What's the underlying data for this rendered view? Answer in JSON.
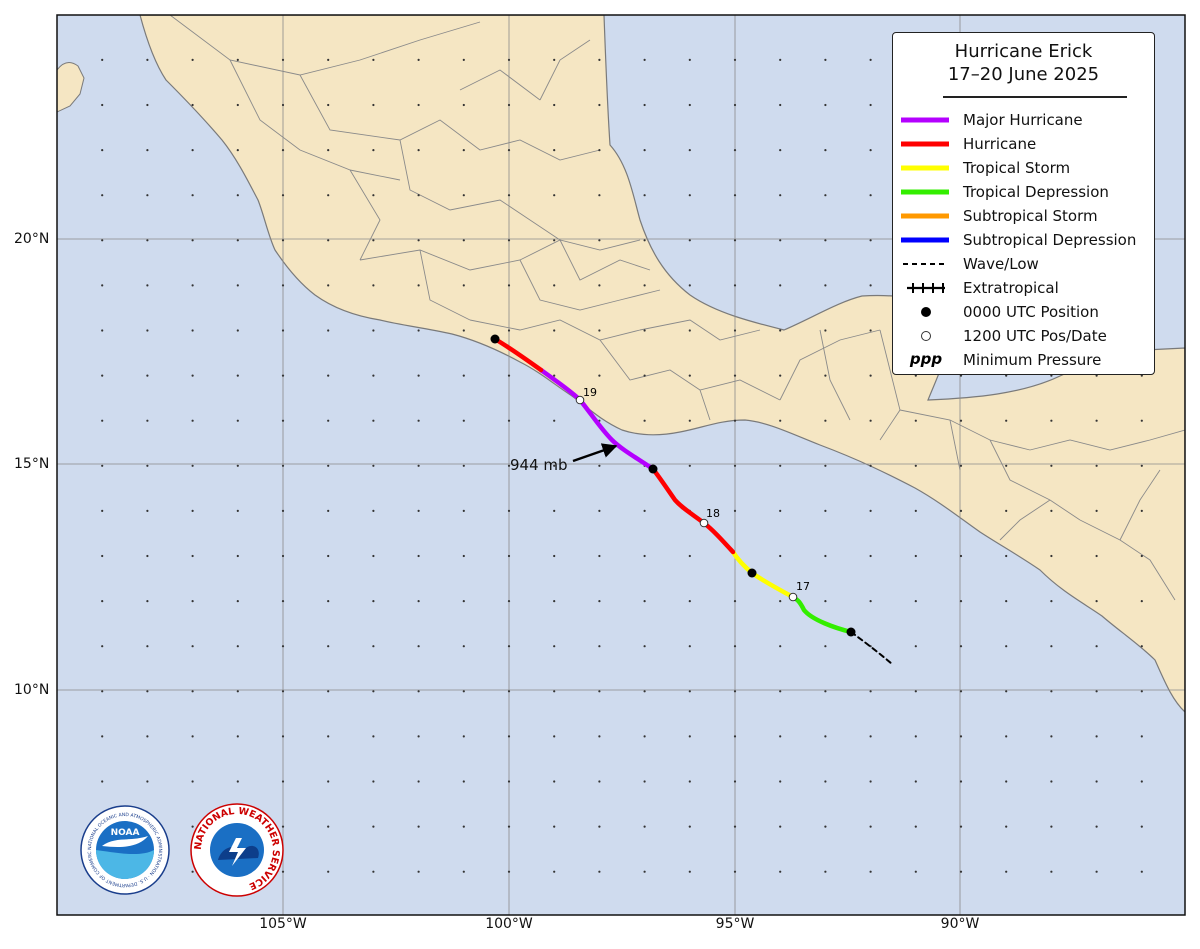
{
  "title_line1": "Hurricane Erick",
  "title_line2": "17–20 June 2025",
  "legend": [
    {
      "label": "Major Hurricane",
      "style": "solid",
      "color": "#b400ff"
    },
    {
      "label": "Hurricane",
      "style": "solid",
      "color": "#ff0000"
    },
    {
      "label": "Tropical Storm",
      "style": "solid",
      "color": "#ffff00"
    },
    {
      "label": "Tropical Depression",
      "style": "solid",
      "color": "#33ee00"
    },
    {
      "label": "Subtropical Storm",
      "style": "solid",
      "color": "#ff9900"
    },
    {
      "label": "Subtropical Depression",
      "style": "solid",
      "color": "#0000ff"
    },
    {
      "label": "Wave/Low",
      "style": "dashed",
      "color": "#000000"
    },
    {
      "label": "Extratropical",
      "style": "crossed",
      "color": "#000000"
    },
    {
      "label": "0000 UTC Position",
      "style": "black-dot",
      "color": "#000000"
    },
    {
      "label": "1200 UTC Pos/Date",
      "style": "white-dot",
      "color": "#000000"
    },
    {
      "label": "Minimum Pressure",
      "style": "ppp",
      "symbol": "ppp",
      "color": "#000000"
    }
  ],
  "latitude_labels": [
    "20°N",
    "15°N",
    "10°N"
  ],
  "longitude_labels": [
    "105°W",
    "100°W",
    "95°W",
    "90°W"
  ],
  "pressure_label": "944 mb",
  "date_labels": [
    "19",
    "18",
    "17"
  ],
  "colors": {
    "ocean": "#cfdbee",
    "land": "#f5e6c3",
    "border": "#7a7a7a",
    "grid": "#8a8a8a"
  },
  "logos": [
    {
      "name": "NOAA",
      "text": "NOAA",
      "ring_text": "NATIONAL OCEANIC AND ATMOSPHERIC ADMINISTRATION · U.S. DEPARTMENT OF COMMERCE"
    },
    {
      "name": "National Weather Service",
      "text": "NATIONAL WEATHER SERVICE"
    }
  ]
}
